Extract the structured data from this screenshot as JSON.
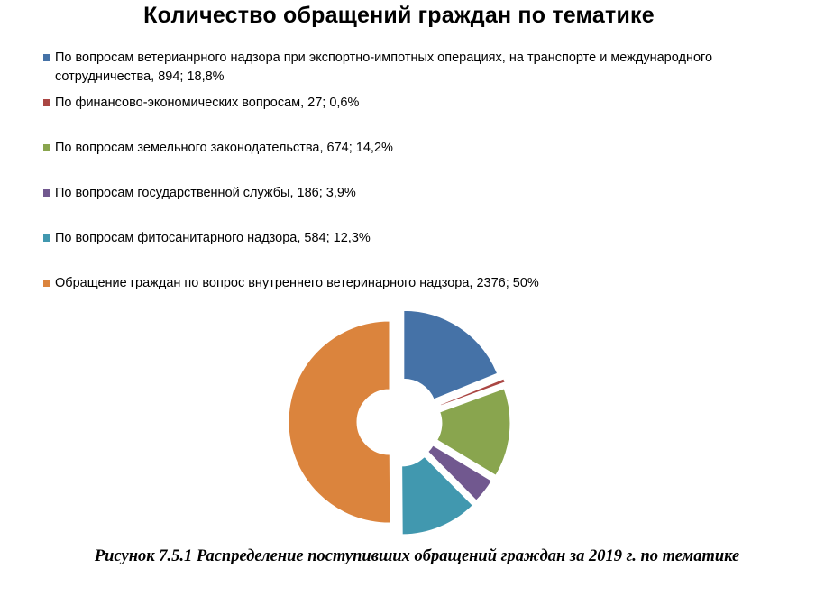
{
  "chart_data": {
    "type": "pie",
    "style": "exploded-doughnut",
    "title": "Количество обращений граждан по тематике",
    "legend_position": "top",
    "slices": [
      {
        "label": "По вопросам ветерианрного надзора при экспортно-импотных операциях, на транспорте и международного сотрудничества, 894; 18,8%",
        "value": 894,
        "percent": 18.8,
        "color": "#4572A7"
      },
      {
        "label": "По финансово-экономических вопросам, 27; 0,6%",
        "value": 27,
        "percent": 0.6,
        "color": "#AA4643"
      },
      {
        "label": "По вопросам земельного законодательства, 674; 14,2%",
        "value": 674,
        "percent": 14.2,
        "color": "#89A54E"
      },
      {
        "label": "По вопросам государственной службы, 186; 3,9%",
        "value": 186,
        "percent": 3.9,
        "color": "#71588F"
      },
      {
        "label": "По вопросам фитосанитарного надзора, 584; 12,3%",
        "value": 584,
        "percent": 12.3,
        "color": "#4198AF"
      },
      {
        "label": "Обращение граждан по вопрос внутреннего ветеринарного надзора, 2376; 50%",
        "value": 2376,
        "percent": 50,
        "color": "#DB843D"
      }
    ]
  },
  "caption": "Рисунок 7.5.1 Распределение поступивших обращений граждан за 2019 г. по тематике"
}
